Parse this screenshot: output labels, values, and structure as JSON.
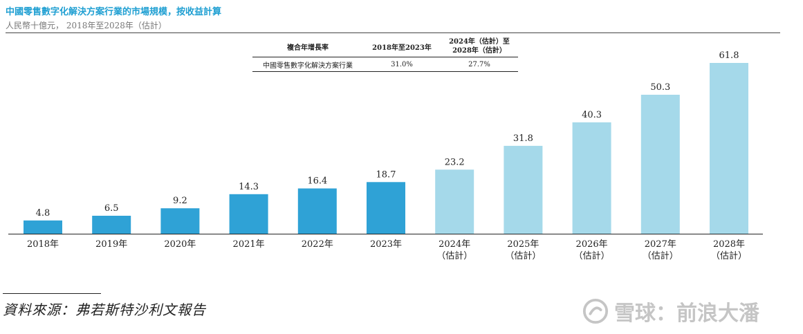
{
  "header": {
    "title": "中國零售數字化解決方案行業的市場規模，按收益計算",
    "subtitle": "人民幣十億元， 2018年至2028年（估計）"
  },
  "cagr_table": {
    "header_label": "複合年增長率",
    "col1_header": "2018年至2023年",
    "col2_header_line1": "2024年（估計）至",
    "col2_header_line2": "2028年（估計）",
    "row_label": "中國零售數字化解決方案行業",
    "row_value1": "31.0%",
    "row_value2": "27.7%"
  },
  "chart_data": {
    "type": "bar",
    "categories": [
      "2018年",
      "2019年",
      "2020年",
      "2021年",
      "2022年",
      "2023年",
      "2024年",
      "2025年",
      "2026年",
      "2027年",
      "2028年"
    ],
    "category_sublabels": [
      "",
      "",
      "",
      "",
      "",
      "",
      "（估計）",
      "（估計）",
      "（估計）",
      "（估計）",
      "（估計）"
    ],
    "values": [
      4.8,
      6.5,
      9.2,
      14.3,
      16.4,
      18.7,
      23.2,
      31.8,
      40.3,
      50.3,
      61.8
    ],
    "value_labels": [
      "4.8",
      "6.5",
      "9.2",
      "14.3",
      "16.4",
      "18.7",
      "23.2",
      "31.8",
      "40.3",
      "50.3",
      "61.8"
    ],
    "estimated": [
      false,
      false,
      false,
      false,
      false,
      false,
      true,
      true,
      true,
      true,
      true
    ],
    "ylim": [
      0,
      61.8
    ],
    "grid": false,
    "colors": {
      "historical": "#2fa2d6",
      "estimated": "#a5d9ea",
      "axis": "#222222"
    }
  },
  "source": {
    "text": "資料來源：弗若斯特沙利文報告"
  },
  "watermark": {
    "text": "雪球：前浪大潘"
  }
}
